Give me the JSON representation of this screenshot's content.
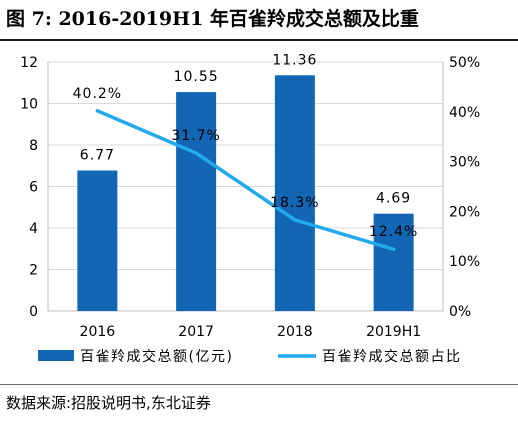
{
  "title": "图 7:  2016-2019H1 年百雀羚成交总额及比重",
  "source": "数据来源:招股说明书,东北证券",
  "colors": {
    "bar": "#1366b3",
    "line": "#21aaee",
    "grid": "#d9d9d9",
    "axis": "#bfbfbf",
    "text": "#000000"
  },
  "chart_data": {
    "type": "bar",
    "categories": [
      "2016",
      "2017",
      "2018",
      "2019H1"
    ],
    "series": [
      {
        "name": "百雀羚成交总额(亿元)",
        "type": "bar",
        "axis": "left",
        "values": [
          6.77,
          10.55,
          11.36,
          4.69
        ],
        "labels": [
          "6.77",
          "10.55",
          "11.36",
          "4.69"
        ]
      },
      {
        "name": "百雀羚成交总额占比",
        "type": "line",
        "axis": "right",
        "values": [
          40.2,
          31.7,
          18.3,
          12.4
        ],
        "labels": [
          "40.2%",
          "31.7%",
          "18.3%",
          "12.4%"
        ]
      }
    ],
    "y_left": {
      "min": 0,
      "max": 12,
      "ticks": [
        "0",
        "2",
        "4",
        "6",
        "8",
        "10",
        "12"
      ]
    },
    "y_right": {
      "min": 0,
      "max": 50,
      "ticks": [
        "0%",
        "10%",
        "20%",
        "30%",
        "40%",
        "50%"
      ]
    },
    "grid": true,
    "legend_position": "bottom"
  }
}
